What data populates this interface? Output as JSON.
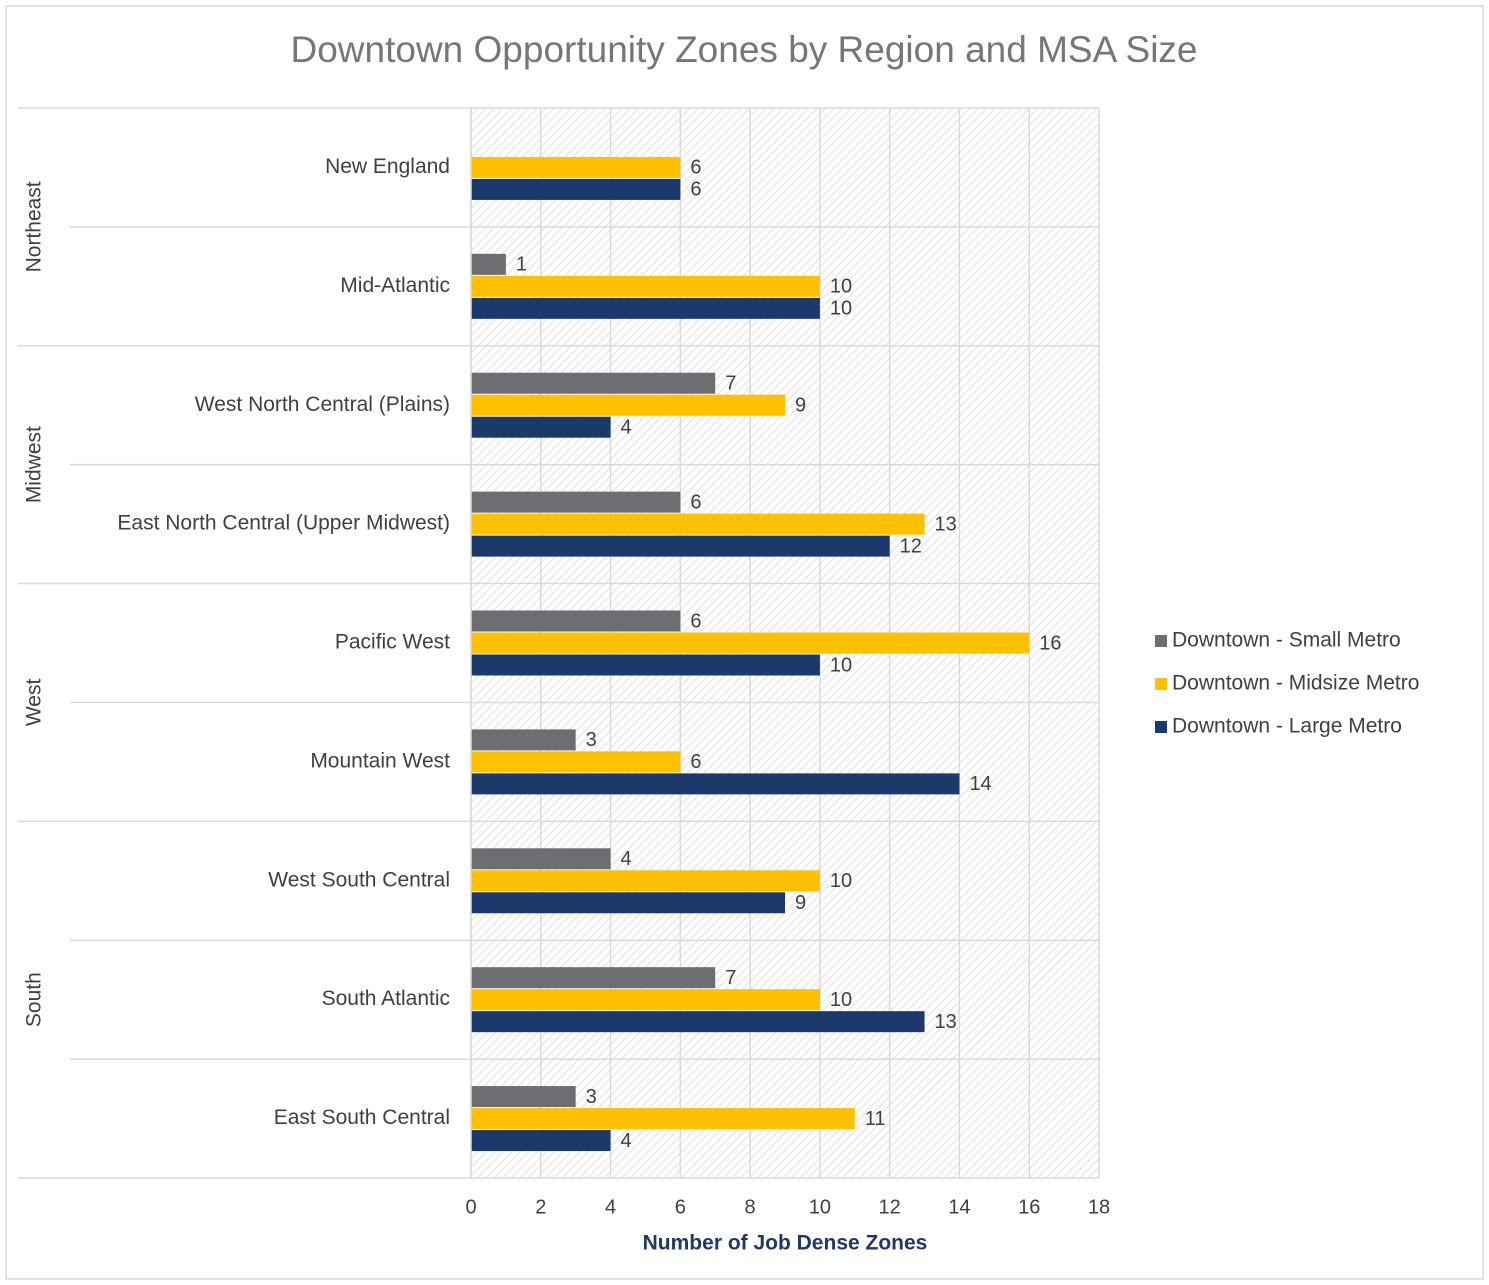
{
  "chart_data": {
    "type": "bar",
    "orientation": "horizontal",
    "title": "Downtown Opportunity Zones by Region and MSA Size",
    "x_label": "Number of Job Dense Zones",
    "groups": [
      {
        "name": "Northeast",
        "categories": [
          "New England",
          "Mid-Atlantic"
        ]
      },
      {
        "name": "Midwest",
        "categories": [
          "West North Central (Plains)",
          "East North Central (Upper Midwest)"
        ]
      },
      {
        "name": "West",
        "categories": [
          "Pacific West",
          "Mountain West"
        ]
      },
      {
        "name": "South",
        "categories": [
          "West South Central",
          "South Atlantic",
          "East South Central"
        ]
      }
    ],
    "series": [
      {
        "name": "Downtown - Small Metro",
        "color": "#6d6e71",
        "values": [
          null,
          1,
          7,
          6,
          6,
          3,
          4,
          7,
          3
        ]
      },
      {
        "name": "Downtown - Midsize Metro",
        "color": "#ffc000",
        "values": [
          6,
          10,
          9,
          13,
          16,
          6,
          10,
          10,
          11
        ]
      },
      {
        "name": "Downtown - Large Metro",
        "color": "#1b3a6b",
        "values": [
          6,
          10,
          4,
          12,
          10,
          14,
          9,
          13,
          4
        ]
      }
    ],
    "xlim": [
      0,
      18
    ],
    "xticks": [
      0,
      2,
      4,
      6,
      8,
      10,
      12,
      14,
      16,
      18
    ],
    "grid": true,
    "legend": "right"
  }
}
